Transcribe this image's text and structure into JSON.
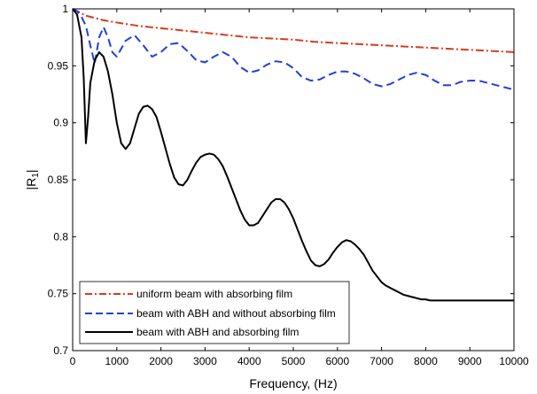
{
  "chart_data": {
    "type": "line",
    "xlabel": "Frequency, (Hz)",
    "ylabel": "|R",
    "ylabel_sub": "1",
    "ylabel_end": "|",
    "xlim": [
      0,
      10000
    ],
    "ylim": [
      0.7,
      1.0
    ],
    "x_ticks": [
      0,
      1000,
      2000,
      3000,
      4000,
      5000,
      6000,
      7000,
      8000,
      9000,
      10000
    ],
    "x_tick_labels": [
      "0",
      "1000",
      "2000",
      "3000",
      "4000",
      "5000",
      "6000",
      "7000",
      "8000",
      "9000",
      "10000"
    ],
    "y_ticks": [
      0.7,
      0.75,
      0.8,
      0.85,
      0.9,
      0.95,
      1.0
    ],
    "y_tick_labels": [
      "0.7",
      "0.75",
      "0.8",
      "0.85",
      "0.9",
      "0.95",
      "1"
    ],
    "grid": false,
    "legend_position": "bottom-left",
    "series": [
      {
        "name": "uniform beam with absorbing film",
        "color": "#d93a1c",
        "style": "dash-dot",
        "x": [
          0,
          100,
          200,
          300,
          500,
          700,
          1000,
          1500,
          2000,
          2500,
          3000,
          3500,
          4000,
          4500,
          5000,
          5500,
          6000,
          6500,
          7000,
          7500,
          8000,
          8500,
          9000,
          9500,
          10000
        ],
        "y": [
          1.0,
          0.998,
          0.996,
          0.994,
          0.992,
          0.99,
          0.988,
          0.985,
          0.983,
          0.981,
          0.979,
          0.977,
          0.975,
          0.974,
          0.973,
          0.971,
          0.97,
          0.969,
          0.968,
          0.967,
          0.966,
          0.965,
          0.964,
          0.963,
          0.962
        ]
      },
      {
        "name": "beam with ABH and without absorbing film",
        "color": "#1f3fe0",
        "style": "dash",
        "x": [
          0,
          100,
          200,
          300,
          400,
          500,
          600,
          700,
          800,
          900,
          1000,
          1200,
          1400,
          1600,
          1800,
          2000,
          2200,
          2400,
          2600,
          2800,
          3000,
          3200,
          3400,
          3600,
          3800,
          4000,
          4200,
          4400,
          4600,
          4800,
          5000,
          5200,
          5400,
          5600,
          5800,
          6000,
          6200,
          6400,
          6600,
          6800,
          7000,
          7200,
          7400,
          7600,
          7800,
          8000,
          8200,
          8400,
          8600,
          8800,
          9000,
          9200,
          9400,
          9600,
          9800,
          10000
        ],
        "y": [
          1.0,
          0.998,
          0.993,
          0.985,
          0.968,
          0.952,
          0.975,
          0.984,
          0.975,
          0.962,
          0.958,
          0.972,
          0.977,
          0.968,
          0.958,
          0.962,
          0.969,
          0.97,
          0.963,
          0.955,
          0.953,
          0.958,
          0.962,
          0.958,
          0.949,
          0.944,
          0.946,
          0.951,
          0.954,
          0.953,
          0.948,
          0.94,
          0.937,
          0.938,
          0.942,
          0.945,
          0.945,
          0.943,
          0.939,
          0.934,
          0.932,
          0.934,
          0.938,
          0.942,
          0.944,
          0.942,
          0.937,
          0.933,
          0.933,
          0.936,
          0.937,
          0.937,
          0.935,
          0.933,
          0.931,
          0.929
        ]
      },
      {
        "name": "beam with ABH and absorbing film",
        "color": "#000000",
        "style": "solid",
        "x": [
          0,
          100,
          200,
          250,
          300,
          350,
          400,
          500,
          600,
          700,
          800,
          900,
          1000,
          1100,
          1200,
          1300,
          1400,
          1500,
          1600,
          1700,
          1800,
          1900,
          2000,
          2100,
          2200,
          2300,
          2400,
          2500,
          2600,
          2700,
          2800,
          2900,
          3000,
          3100,
          3200,
          3300,
          3400,
          3500,
          3600,
          3700,
          3800,
          3900,
          4000,
          4100,
          4200,
          4300,
          4400,
          4500,
          4600,
          4700,
          4800,
          4900,
          5000,
          5100,
          5200,
          5300,
          5400,
          5500,
          5600,
          5700,
          5800,
          5900,
          6000,
          6100,
          6200,
          6300,
          6400,
          6500,
          6600,
          6700,
          6800,
          6900,
          7000,
          7100,
          7200,
          7300,
          7400,
          7500,
          7600,
          7700,
          7800,
          7900,
          8000,
          8100,
          8200,
          8300,
          8400,
          8500,
          8600,
          8700,
          8800,
          8900,
          9000,
          9200,
          9400,
          9600,
          9800,
          10000
        ],
        "y": [
          1.0,
          0.995,
          0.975,
          0.94,
          0.882,
          0.905,
          0.935,
          0.955,
          0.962,
          0.958,
          0.945,
          0.925,
          0.9,
          0.882,
          0.877,
          0.882,
          0.895,
          0.908,
          0.914,
          0.915,
          0.912,
          0.905,
          0.892,
          0.878,
          0.864,
          0.852,
          0.846,
          0.845,
          0.85,
          0.858,
          0.865,
          0.87,
          0.872,
          0.873,
          0.872,
          0.868,
          0.862,
          0.853,
          0.843,
          0.833,
          0.823,
          0.815,
          0.81,
          0.81,
          0.812,
          0.818,
          0.824,
          0.83,
          0.833,
          0.833,
          0.83,
          0.824,
          0.816,
          0.806,
          0.796,
          0.787,
          0.779,
          0.775,
          0.774,
          0.776,
          0.78,
          0.786,
          0.791,
          0.795,
          0.797,
          0.796,
          0.793,
          0.789,
          0.784,
          0.777,
          0.77,
          0.765,
          0.76,
          0.757,
          0.755,
          0.753,
          0.751,
          0.749,
          0.748,
          0.747,
          0.746,
          0.745,
          0.745,
          0.744,
          0.744,
          0.744,
          0.744,
          0.744,
          0.744,
          0.744,
          0.744,
          0.744,
          0.744,
          0.744,
          0.744,
          0.744,
          0.744,
          0.744
        ]
      }
    ]
  }
}
